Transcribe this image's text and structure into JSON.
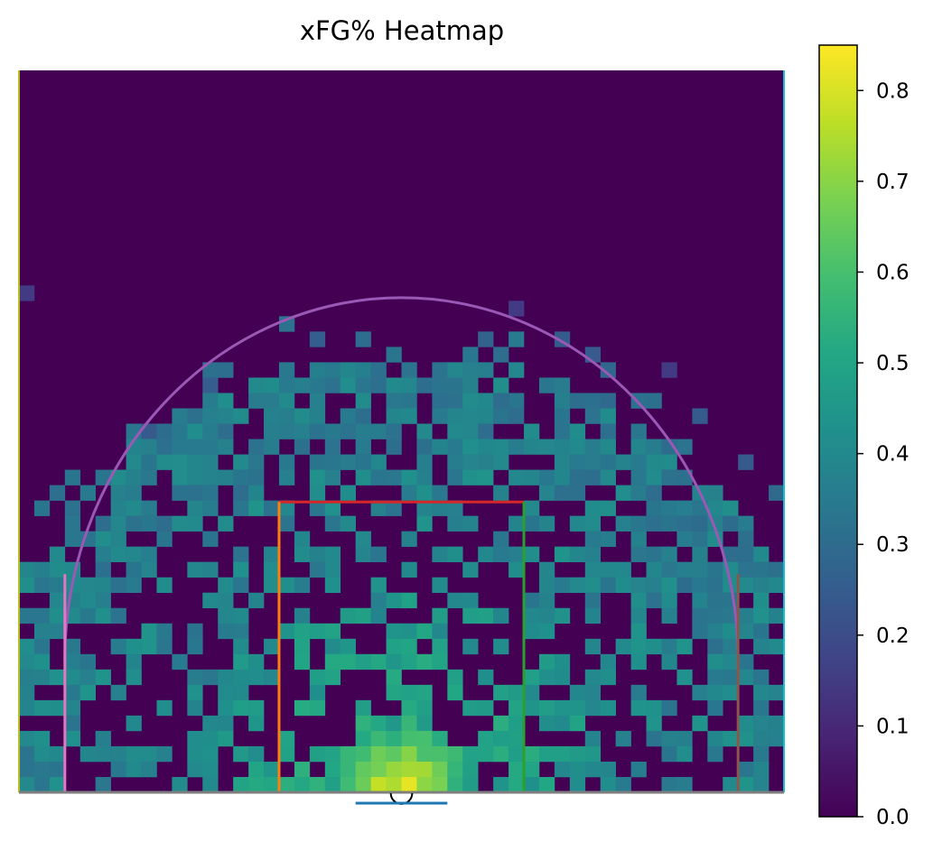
{
  "chart_data": {
    "type": "heatmap",
    "title": "xFG% Heatmap",
    "xlabel": "",
    "ylabel": "",
    "colormap": "viridis",
    "colorbar": {
      "min": 0.0,
      "max": 0.85,
      "ticks": [
        0.0,
        0.1,
        0.2,
        0.3,
        0.4,
        0.5,
        0.6,
        0.7,
        0.8
      ],
      "tick_labels": [
        "0.0",
        "0.1",
        "0.2",
        "0.3",
        "0.4",
        "0.5",
        "0.6",
        "0.7",
        "0.8"
      ]
    },
    "grid": {
      "cols": 50,
      "rows": 47
    },
    "court_lines": {
      "three_point_arc": "#9b59b6",
      "paint_top": "#d62728",
      "paint_left": "#ff7f0e",
      "paint_right": "#2ca02c",
      "corner_left": "#e377c2",
      "corner_right": "#8c564b",
      "baseline": "#7f7f7f",
      "backboard": "#1f77b4",
      "left_sideline": "#bcbd22",
      "right_sideline": "#17becf",
      "rim": "#000000"
    },
    "notable_values": {
      "max_near_rim": 0.85,
      "typical_paint": 0.45,
      "typical_midrange": 0.4,
      "typical_three": 0.35,
      "outside_range": 0.0
    }
  }
}
